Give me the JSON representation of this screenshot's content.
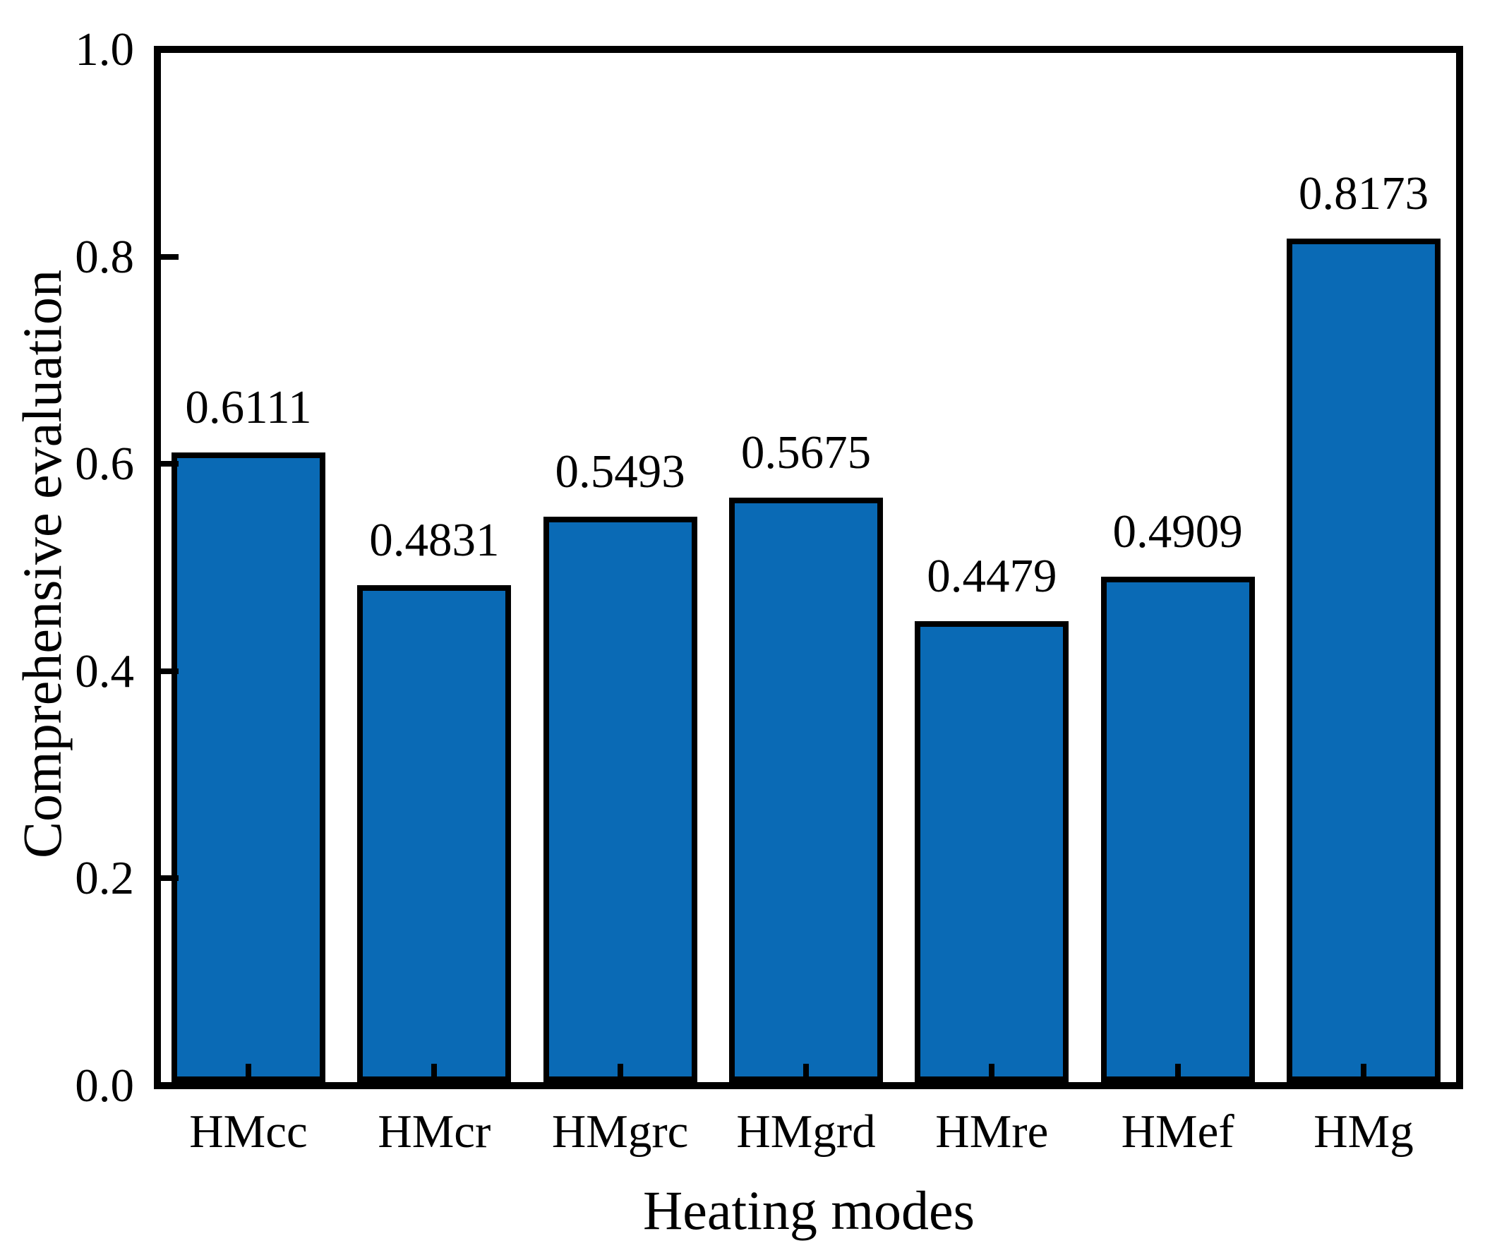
{
  "chart_data": {
    "type": "bar",
    "title": "",
    "categories": [
      "HMcc",
      "HMcr",
      "HMgrc",
      "HMgrd",
      "HMre",
      "HMef",
      "HMg"
    ],
    "values": [
      0.6111,
      0.4831,
      0.5493,
      0.5675,
      0.4479,
      0.4909,
      0.8173
    ],
    "value_labels": [
      "0.6111",
      "0.4831",
      "0.5493",
      "0.5675",
      "0.4479",
      "0.4909",
      "0.8173"
    ],
    "xlabel": "Heating modes",
    "ylabel": "Comprehensive evaluation",
    "ylim": [
      0.0,
      1.0
    ],
    "y_ticks": [
      "0.0",
      "0.2",
      "0.4",
      "0.6",
      "0.8",
      "1.0"
    ],
    "grid": false,
    "legend": false,
    "tick_direction": "in",
    "bar_color": "#0a6ab5",
    "bar_border_color": "#000000",
    "frame_color": "#000000",
    "background_color": "#ffffff",
    "text_color": "#000000"
  }
}
